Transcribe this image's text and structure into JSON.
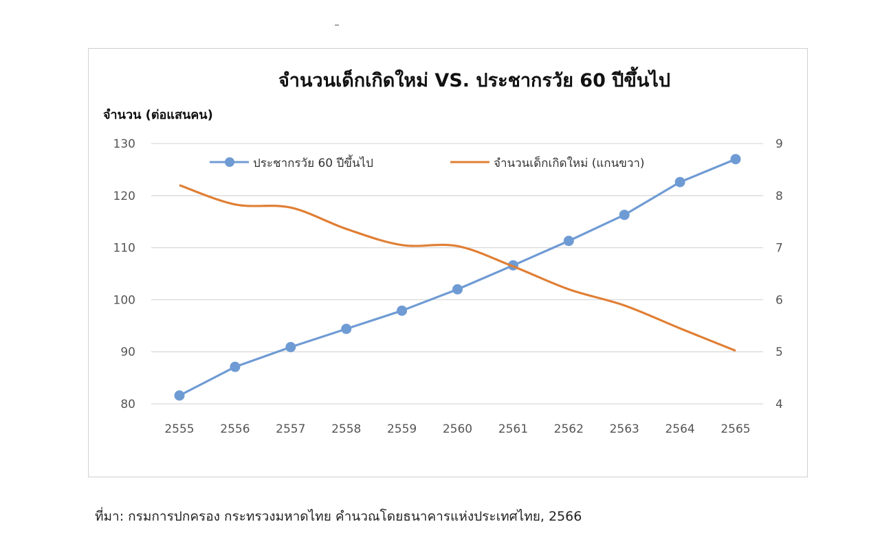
{
  "chart_data": {
    "type": "line",
    "title": "จำนวนเด็กเกิดใหม่ VS. ประชากรวัย 60 ปีขึ้นไป",
    "ylabel": "จำนวน (ต่อแสนคน)",
    "xlabel": "",
    "categories": [
      "2555",
      "2556",
      "2557",
      "2558",
      "2559",
      "2560",
      "2561",
      "2562",
      "2563",
      "2564",
      "2565"
    ],
    "y_left": {
      "range": [
        80,
        130
      ],
      "ticks": [
        "80",
        "90",
        "100",
        "110",
        "120",
        "130"
      ]
    },
    "y_right": {
      "range": [
        4,
        9
      ],
      "ticks": [
        "4",
        "5",
        "6",
        "7",
        "8",
        "9"
      ]
    },
    "grid": true,
    "legend_position": "top",
    "series": [
      {
        "name": "ประชากรวัย 60 ปีขึ้นไป",
        "axis": "left",
        "color": "#6f9bd4",
        "markers": true,
        "smooth": false,
        "values": [
          81.6,
          87.1,
          90.9,
          94.4,
          97.9,
          102.0,
          106.6,
          111.3,
          116.3,
          122.6,
          127.0
        ]
      },
      {
        "name": "จำนวนเด็กเกิดใหม่ (แกนขวา)",
        "axis": "right",
        "color": "#e07f35",
        "markers": false,
        "smooth": true,
        "values": [
          8.2,
          7.83,
          7.77,
          7.36,
          7.05,
          7.03,
          6.64,
          6.2,
          5.89,
          5.45,
          5.02
        ]
      }
    ]
  },
  "source": "ที่มา: กรมการปกครอง กระทรวงมหาดไทย คำนวณโดยธนาคารแห่งประเทศไทย, 2566"
}
